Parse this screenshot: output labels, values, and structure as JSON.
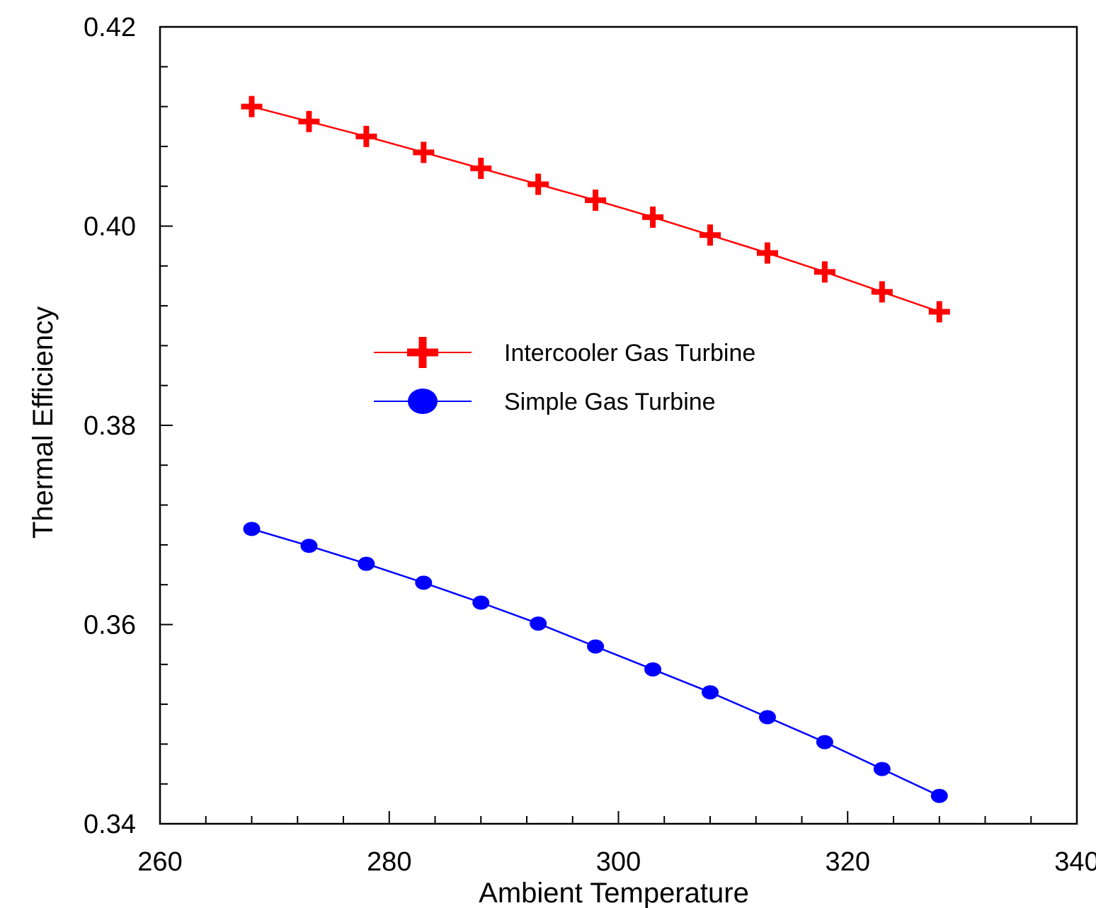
{
  "chart_data": {
    "type": "line",
    "title": "",
    "xlabel": "Ambient Temperature",
    "ylabel": "Thermal Efficiency",
    "xlim": [
      260,
      340
    ],
    "ylim": [
      0.34,
      0.42
    ],
    "x_ticks": [
      260,
      280,
      300,
      320,
      340
    ],
    "x_tick_labels": [
      "260",
      "280",
      "300",
      "320",
      "340"
    ],
    "y_ticks": [
      0.34,
      0.36,
      0.38,
      0.4,
      0.42
    ],
    "y_tick_labels": [
      "0.34",
      "0.36",
      "0.38",
      "0.40",
      "0.42"
    ],
    "x_minor_step": 4,
    "y_minor_step": 0.004,
    "grid": false,
    "legend_position": "center",
    "series": [
      {
        "name": "Intercooler Gas Turbine",
        "marker": "plus",
        "color": "#ff0000",
        "x": [
          268,
          273,
          278,
          283,
          288,
          293,
          298,
          303,
          308,
          313,
          318,
          323,
          328
        ],
        "y": [
          0.412,
          0.4105,
          0.409,
          0.4074,
          0.4058,
          0.4042,
          0.4026,
          0.4009,
          0.3991,
          0.3973,
          0.3954,
          0.3934,
          0.3914
        ]
      },
      {
        "name": "Simple Gas Turbine",
        "marker": "circle",
        "color": "#0000ff",
        "x": [
          268,
          273,
          278,
          283,
          288,
          293,
          298,
          303,
          308,
          313,
          318,
          323,
          328
        ],
        "y": [
          0.3696,
          0.3679,
          0.3661,
          0.3642,
          0.3622,
          0.3601,
          0.3578,
          0.3555,
          0.3532,
          0.3507,
          0.3482,
          0.3455,
          0.3428
        ]
      }
    ]
  }
}
